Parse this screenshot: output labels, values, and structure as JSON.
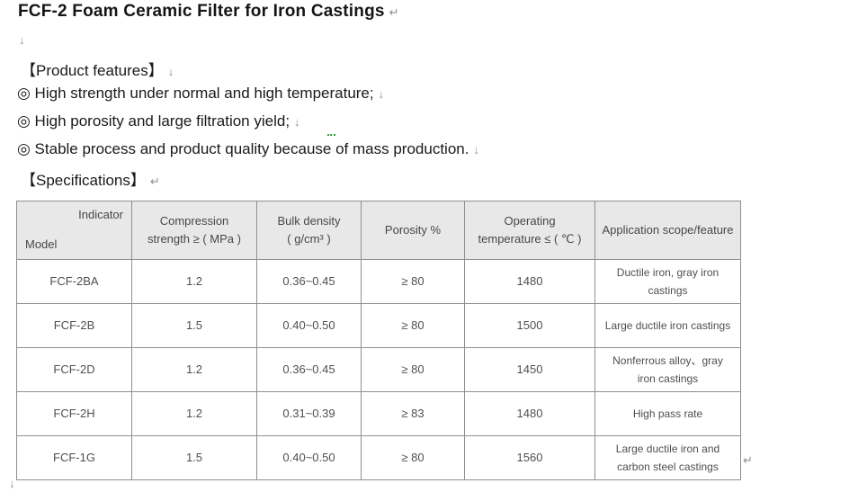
{
  "document": {
    "title": "FCF-2 Foam Ceramic Filter for Iron Castings",
    "features_heading": "【Product features】",
    "features": [
      "◎ High strength under normal and high temperature;",
      "◎ High porosity and large filtration yield;",
      "◎ Stable process and product quality because of mass production."
    ],
    "specifications_heading": "【Specifications】",
    "marks": {
      "paragraph": "↵",
      "line_break": "↓"
    }
  },
  "table": {
    "corner": {
      "top_right": "Indicator",
      "bottom_left": "Model"
    },
    "headers": [
      "Compression\nstrength ≥ ( MPa )",
      "Bulk density\n( g/cm³ )",
      "Porosity %",
      "Operating\ntemperature ≤ ( ℃ )",
      "Application scope/feature"
    ],
    "rows": [
      [
        "FCF-2BA",
        "1.2",
        "0.36~0.45",
        "≥ 80",
        "1480",
        "Ductile iron, gray iron\ncastings"
      ],
      [
        "FCF-2B",
        "1.5",
        "0.40~0.50",
        "≥ 80",
        "1500",
        "Large ductile iron castings"
      ],
      [
        "FCF-2D",
        "1.2",
        "0.36~0.45",
        "≥ 80",
        "1450",
        "Nonferrous alloy、gray\niron castings"
      ],
      [
        "FCF-2H",
        "1.2",
        "0.31~0.39",
        "≥ 83",
        "1480",
        "High pass rate"
      ],
      [
        "FCF-1G",
        "1.5",
        "0.40~0.50",
        "≥ 80",
        "1560",
        "Large ductile iron and\ncarbon steel castings"
      ]
    ]
  },
  "colors": {
    "header_background": "#e8e8e8",
    "table_border": "#8f8f8f",
    "table_text": "#4f4f4f",
    "body_text": "#1a1a1a",
    "edit_marks": "#8f8f8f",
    "grammar_squiggle": "#3a9b3a"
  }
}
